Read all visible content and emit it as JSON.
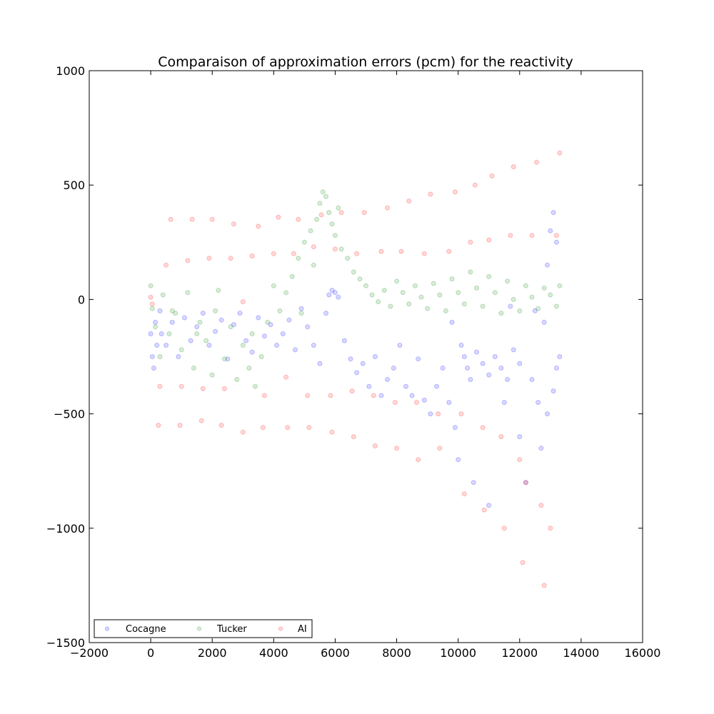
{
  "chart_data": {
    "type": "scatter",
    "title": "Comparaison of approximation errors (pcm) for the reactivity",
    "xlabel": "",
    "ylabel": "",
    "xlim": [
      -2000,
      16000
    ],
    "ylim": [
      -1500,
      1000
    ],
    "x_ticks": [
      -2000,
      0,
      2000,
      4000,
      6000,
      8000,
      10000,
      12000,
      14000,
      16000
    ],
    "y_ticks": [
      -1500,
      -1000,
      -500,
      0,
      500,
      1000
    ],
    "x_tick_labels": [
      "−2000",
      "0",
      "2000",
      "4000",
      "6000",
      "8000",
      "10000",
      "12000",
      "14000",
      "16000"
    ],
    "y_tick_labels": [
      "−1500",
      "−1000",
      "−500",
      "0",
      "500",
      "1000"
    ],
    "grid": false,
    "legend": {
      "placement": "lower-left",
      "columns": 3
    },
    "marker_alpha": 0.15,
    "series": [
      {
        "name": "Cocagne",
        "color": "#0000ff",
        "points": [
          [
            0,
            -150
          ],
          [
            50,
            -250
          ],
          [
            100,
            -300
          ],
          [
            150,
            -100
          ],
          [
            200,
            -200
          ],
          [
            300,
            -50
          ],
          [
            350,
            -150
          ],
          [
            500,
            -200
          ],
          [
            700,
            -100
          ],
          [
            900,
            -250
          ],
          [
            1100,
            -80
          ],
          [
            1300,
            -180
          ],
          [
            1500,
            -120
          ],
          [
            1700,
            -60
          ],
          [
            1900,
            -200
          ],
          [
            2100,
            -140
          ],
          [
            2300,
            -90
          ],
          [
            2500,
            -260
          ],
          [
            2700,
            -110
          ],
          [
            2900,
            -60
          ],
          [
            3100,
            -180
          ],
          [
            3300,
            -230
          ],
          [
            3500,
            -80
          ],
          [
            3700,
            -160
          ],
          [
            3900,
            -110
          ],
          [
            4100,
            -200
          ],
          [
            4300,
            -150
          ],
          [
            4500,
            -90
          ],
          [
            4700,
            -220
          ],
          [
            4900,
            -40
          ],
          [
            5100,
            -120
          ],
          [
            5300,
            -200
          ],
          [
            5500,
            -280
          ],
          [
            5700,
            -60
          ],
          [
            5800,
            20
          ],
          [
            5900,
            40
          ],
          [
            6000,
            30
          ],
          [
            6100,
            10
          ],
          [
            6300,
            -180
          ],
          [
            6500,
            -260
          ],
          [
            6700,
            -320
          ],
          [
            6900,
            -280
          ],
          [
            7100,
            -380
          ],
          [
            7300,
            -250
          ],
          [
            7500,
            -420
          ],
          [
            7700,
            -350
          ],
          [
            7900,
            -300
          ],
          [
            8100,
            -200
          ],
          [
            8300,
            -380
          ],
          [
            8500,
            -420
          ],
          [
            8700,
            -260
          ],
          [
            8900,
            -440
          ],
          [
            9100,
            -500
          ],
          [
            9300,
            -380
          ],
          [
            9500,
            -300
          ],
          [
            9700,
            -450
          ],
          [
            9900,
            -560
          ],
          [
            10000,
            -700
          ],
          [
            10100,
            -200
          ],
          [
            10200,
            -250
          ],
          [
            10300,
            -300
          ],
          [
            10400,
            -350
          ],
          [
            10500,
            -800
          ],
          [
            10600,
            -230
          ],
          [
            10800,
            -280
          ],
          [
            11000,
            -330
          ],
          [
            11000,
            -900
          ],
          [
            11200,
            -250
          ],
          [
            11400,
            -300
          ],
          [
            11500,
            -450
          ],
          [
            11600,
            -350
          ],
          [
            11800,
            -220
          ],
          [
            12000,
            -280
          ],
          [
            12000,
            -600
          ],
          [
            12200,
            -800
          ],
          [
            12400,
            -350
          ],
          [
            12600,
            -450
          ],
          [
            12700,
            -650
          ],
          [
            12900,
            -500
          ],
          [
            13100,
            -400
          ],
          [
            13200,
            -300
          ],
          [
            13300,
            -250
          ],
          [
            12800,
            -100
          ],
          [
            12900,
            150
          ],
          [
            13000,
            300
          ],
          [
            13100,
            380
          ],
          [
            13200,
            250
          ],
          [
            12500,
            -50
          ],
          [
            11700,
            -30
          ],
          [
            9800,
            -100
          ]
        ]
      },
      {
        "name": "Tucker",
        "color": "#008000",
        "points": [
          [
            0,
            60
          ],
          [
            50,
            -40
          ],
          [
            150,
            -120
          ],
          [
            300,
            -250
          ],
          [
            400,
            20
          ],
          [
            600,
            -150
          ],
          [
            800,
            -60
          ],
          [
            1000,
            -220
          ],
          [
            1200,
            30
          ],
          [
            1400,
            -300
          ],
          [
            1600,
            -100
          ],
          [
            1800,
            -180
          ],
          [
            2000,
            -330
          ],
          [
            2200,
            40
          ],
          [
            2400,
            -260
          ],
          [
            2600,
            -120
          ],
          [
            2800,
            -350
          ],
          [
            3000,
            -200
          ],
          [
            3200,
            -300
          ],
          [
            3400,
            -380
          ],
          [
            3600,
            -250
          ],
          [
            3800,
            -100
          ],
          [
            4000,
            60
          ],
          [
            4200,
            -50
          ],
          [
            4400,
            30
          ],
          [
            4600,
            100
          ],
          [
            4800,
            180
          ],
          [
            5000,
            250
          ],
          [
            5200,
            300
          ],
          [
            5400,
            350
          ],
          [
            5500,
            420
          ],
          [
            5600,
            470
          ],
          [
            5700,
            450
          ],
          [
            5800,
            380
          ],
          [
            5900,
            330
          ],
          [
            6000,
            280
          ],
          [
            6200,
            220
          ],
          [
            6400,
            180
          ],
          [
            6600,
            120
          ],
          [
            6800,
            90
          ],
          [
            7000,
            60
          ],
          [
            7200,
            20
          ],
          [
            7400,
            -10
          ],
          [
            7600,
            40
          ],
          [
            7800,
            -30
          ],
          [
            8000,
            80
          ],
          [
            8200,
            30
          ],
          [
            8400,
            -20
          ],
          [
            8600,
            60
          ],
          [
            8800,
            10
          ],
          [
            9000,
            -40
          ],
          [
            9200,
            70
          ],
          [
            9400,
            20
          ],
          [
            9600,
            -50
          ],
          [
            9800,
            90
          ],
          [
            10000,
            30
          ],
          [
            10200,
            -20
          ],
          [
            10400,
            120
          ],
          [
            10600,
            50
          ],
          [
            10800,
            -30
          ],
          [
            11000,
            100
          ],
          [
            11200,
            30
          ],
          [
            11400,
            -60
          ],
          [
            11600,
            80
          ],
          [
            11800,
            0
          ],
          [
            12000,
            -50
          ],
          [
            12200,
            60
          ],
          [
            12400,
            10
          ],
          [
            12600,
            -40
          ],
          [
            12800,
            50
          ],
          [
            13000,
            20
          ],
          [
            13200,
            -30
          ],
          [
            13300,
            60
          ],
          [
            6100,
            400
          ],
          [
            5300,
            150
          ],
          [
            4900,
            -60
          ],
          [
            3300,
            -150
          ],
          [
            2100,
            -50
          ],
          [
            1500,
            -150
          ],
          [
            700,
            -50
          ]
        ]
      },
      {
        "name": "AI",
        "color": "#ff0000",
        "points": [
          [
            0,
            10
          ],
          [
            50,
            -20
          ],
          [
            250,
            -550
          ],
          [
            300,
            -380
          ],
          [
            500,
            150
          ],
          [
            650,
            350
          ],
          [
            950,
            -550
          ],
          [
            1000,
            -380
          ],
          [
            1200,
            170
          ],
          [
            1350,
            350
          ],
          [
            1650,
            -530
          ],
          [
            1700,
            -390
          ],
          [
            1900,
            180
          ],
          [
            2000,
            350
          ],
          [
            2300,
            -550
          ],
          [
            2400,
            -390
          ],
          [
            2600,
            180
          ],
          [
            2700,
            330
          ],
          [
            3000,
            -580
          ],
          [
            3000,
            -10
          ],
          [
            3300,
            190
          ],
          [
            3500,
            320
          ],
          [
            3650,
            -560
          ],
          [
            3700,
            -420
          ],
          [
            4000,
            200
          ],
          [
            4150,
            360
          ],
          [
            4450,
            -560
          ],
          [
            4400,
            -340
          ],
          [
            4650,
            200
          ],
          [
            4800,
            350
          ],
          [
            5150,
            -560
          ],
          [
            5100,
            -420
          ],
          [
            5300,
            230
          ],
          [
            5550,
            370
          ],
          [
            5900,
            -580
          ],
          [
            5850,
            -420
          ],
          [
            6000,
            220
          ],
          [
            6200,
            380
          ],
          [
            6600,
            -600
          ],
          [
            6550,
            -400
          ],
          [
            6700,
            200
          ],
          [
            6950,
            380
          ],
          [
            7300,
            -640
          ],
          [
            7250,
            -420
          ],
          [
            7500,
            210
          ],
          [
            7700,
            400
          ],
          [
            8000,
            -650
          ],
          [
            7950,
            -450
          ],
          [
            8150,
            210
          ],
          [
            8400,
            430
          ],
          [
            8700,
            -700
          ],
          [
            8650,
            -450
          ],
          [
            8900,
            200
          ],
          [
            9100,
            460
          ],
          [
            9400,
            -650
          ],
          [
            9350,
            -500
          ],
          [
            9700,
            210
          ],
          [
            9900,
            470
          ],
          [
            10200,
            -850
          ],
          [
            10100,
            -500
          ],
          [
            10400,
            250
          ],
          [
            10550,
            500
          ],
          [
            10850,
            -920
          ],
          [
            10800,
            -560
          ],
          [
            11000,
            260
          ],
          [
            11100,
            540
          ],
          [
            11500,
            -1000
          ],
          [
            11400,
            -600
          ],
          [
            11700,
            280
          ],
          [
            11800,
            580
          ],
          [
            12100,
            -1150
          ],
          [
            12000,
            -700
          ],
          [
            12200,
            -800
          ],
          [
            12400,
            280
          ],
          [
            12550,
            600
          ],
          [
            12800,
            -1250
          ],
          [
            12700,
            -900
          ],
          [
            13000,
            -1000
          ],
          [
            13200,
            280
          ],
          [
            13300,
            640
          ]
        ]
      }
    ]
  }
}
